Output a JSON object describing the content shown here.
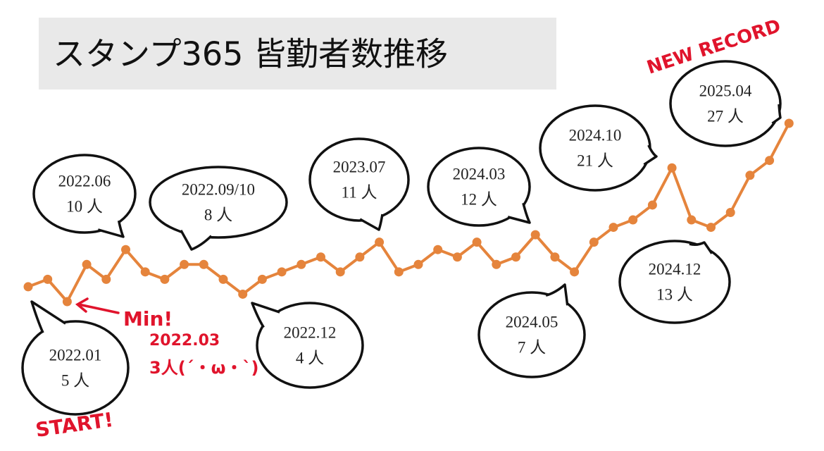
{
  "chart_data": {
    "type": "line",
    "title": "スタンプ365 皆勤者数推移",
    "color": "#e5843c",
    "categories": [
      "2022.01",
      null,
      "2022.03",
      null,
      null,
      "2022.06",
      null,
      null,
      "2022.09/10",
      null,
      null,
      "2022.12",
      null,
      null,
      null,
      null,
      null,
      null,
      "2023.07",
      null,
      null,
      null,
      null,
      null,
      null,
      null,
      "2024.03",
      null,
      "2024.05",
      null,
      null,
      null,
      null,
      "2024.10",
      null,
      "2024.12",
      null,
      null,
      null,
      "2025.04"
    ],
    "values": [
      5,
      6,
      3,
      8,
      6,
      10,
      7,
      6,
      8,
      8,
      6,
      4,
      6,
      7,
      8,
      9,
      7,
      9,
      11,
      7,
      8,
      10,
      9,
      11,
      8,
      9,
      12,
      9,
      7,
      11,
      13,
      14,
      16,
      21,
      14,
      13,
      15,
      20,
      22,
      27
    ],
    "value_labels": [
      "5 人",
      null,
      "3人(´・ω・`)",
      null,
      null,
      "10 人",
      null,
      null,
      "8 人",
      null,
      null,
      "4 人",
      null,
      null,
      null,
      null,
      null,
      null,
      "11 人",
      null,
      null,
      null,
      null,
      null,
      null,
      null,
      "12 人",
      null,
      "7 人",
      null,
      null,
      null,
      null,
      "21 人",
      null,
      "13 人",
      null,
      null,
      null,
      "27 人"
    ],
    "annotations": {
      "start": "START!",
      "min": "Min!",
      "record": "NEW RECORD"
    }
  }
}
